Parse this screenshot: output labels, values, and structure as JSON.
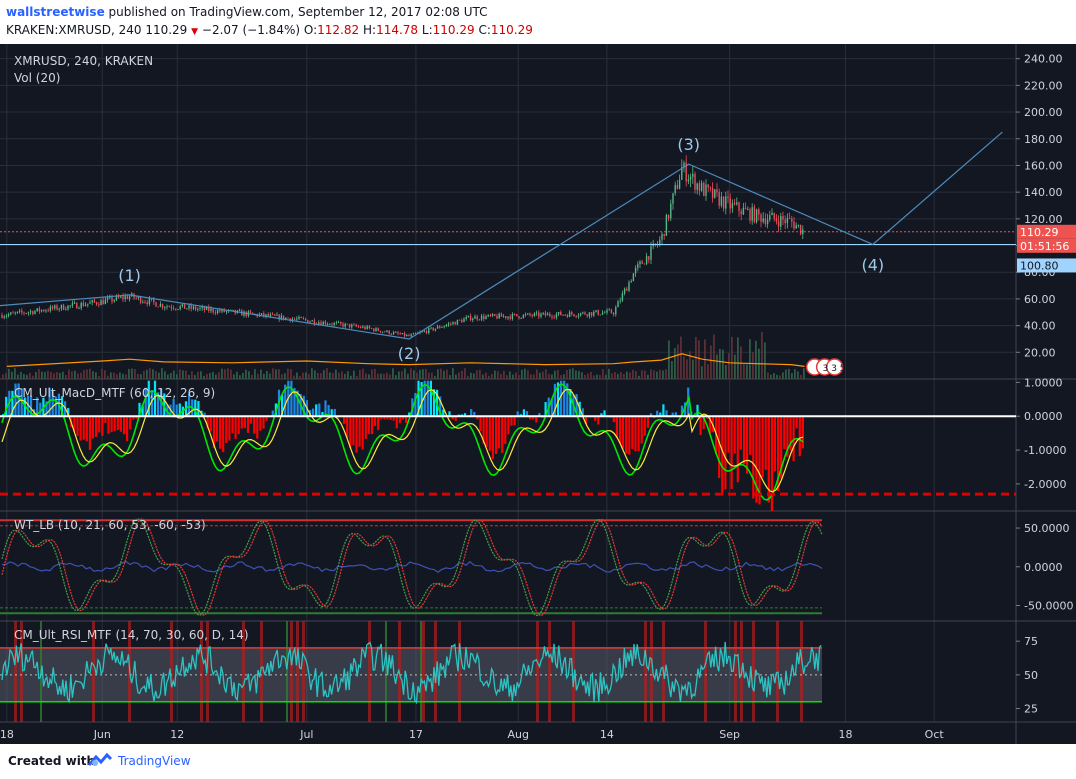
{
  "header": {
    "username": "wallstreetwise",
    "published": "published on TradingView.com, September 12, 2017 02:08 UTC",
    "symbol": "KRAKEN:XMRUSD, 240",
    "last": "110.29",
    "down_arrow": "▼",
    "change": "−2.07 (−1.84%)",
    "o_label": "O:",
    "o": "112.82",
    "h_label": "H:",
    "h": "114.78",
    "l_label": "L:",
    "l": "110.29",
    "c_label": "C:",
    "c": "110.29"
  },
  "footer": {
    "created": "Created with",
    "brand": "TradingView"
  },
  "colors": {
    "bg": "#131722",
    "grid": "#2a2e39",
    "axis_text": "#d1d4dc",
    "up": "#53b987",
    "down": "#eb4d5c",
    "wave": "#4c8cbf",
    "macd_red": "#ff0000",
    "macd_green": "#00e600",
    "macd_cyan": "#00e5ff",
    "rsi_line": "#2cc3c3",
    "wt_red": "#d32f2f"
  },
  "chart_data": [
    {
      "type": "candlestick",
      "title": "XMRUSD, 240, KRAKEN",
      "subtitle": "Vol (20)",
      "x_ticks": [
        "18",
        "Jun",
        "12",
        "Jul",
        "17",
        "Aug",
        "14",
        "Sep",
        "18",
        "Oct"
      ],
      "y_ticks": [
        "240.00",
        "220.00",
        "200.00",
        "180.00",
        "160.00",
        "140.00",
        "120.00",
        "100.00",
        "80.00",
        "60.00",
        "40.00",
        "20.00"
      ],
      "ylim": [
        0,
        245
      ],
      "price_labels": {
        "last": "110.29",
        "countdown": "01:51:56",
        "level": "100.80"
      },
      "resistance_level": 100.8,
      "last_price": 110.29,
      "price_path_x": [
        "May 18",
        "Jun 1",
        "Jun 5",
        "Jun 10",
        "Jun 20",
        "Jul 1",
        "Jul 10",
        "Jul 16",
        "Jul 25",
        "Aug 5",
        "Aug 15",
        "Aug 18",
        "Aug 22",
        "Aug 25",
        "Aug 28",
        "Sep 1",
        "Sep 5",
        "Sep 10",
        "Sep 12"
      ],
      "price_path_close": [
        48,
        58,
        62,
        55,
        50,
        44,
        38,
        32,
        46,
        48,
        50,
        80,
        105,
        158,
        142,
        130,
        122,
        118,
        110.29
      ],
      "elliott_waves": [
        {
          "label": "(1)",
          "x": "Jun 5",
          "price": 63
        },
        {
          "label": "(2)",
          "x": "Jul 16",
          "price": 30
        },
        {
          "label": "(3)",
          "x": "Aug 26",
          "price": 161
        },
        {
          "label": "(4)",
          "x": "Sep 22",
          "price": 100.8
        }
      ],
      "projection": {
        "x": "Oct 11",
        "price": 185
      },
      "vol_ma_values": [
        14,
        20,
        22,
        19,
        18,
        20,
        17,
        16,
        18,
        16,
        17,
        19,
        21,
        28,
        22,
        18,
        17,
        16,
        14
      ],
      "events_marker": "3 3 5"
    },
    {
      "type": "histogram",
      "title": "CM_Ult_MacD_MTF (60, 12, 26, 9)",
      "y_ticks": [
        "1.0000",
        "0.0000",
        "-1.0000",
        "-2.0000"
      ],
      "ylim": [
        -2.8,
        1.1
      ],
      "zero_line": 0,
      "signal_level": -2.3
    },
    {
      "type": "line",
      "title": "WT_LB (10, 21, 60, 53, -60, -53)",
      "y_ticks": [
        "50.0000",
        "0.0000",
        "-50.0000"
      ],
      "ylim": [
        -70,
        72
      ],
      "levels": [
        60,
        53,
        -60,
        -53
      ]
    },
    {
      "type": "line",
      "title": "CM_Ult_RSI_MTF (14, 70, 30, 60, D, 14)",
      "y_ticks": [
        "75",
        "50",
        "25"
      ],
      "ylim": [
        15,
        90
      ],
      "upper": 70,
      "lower": 30
    }
  ]
}
